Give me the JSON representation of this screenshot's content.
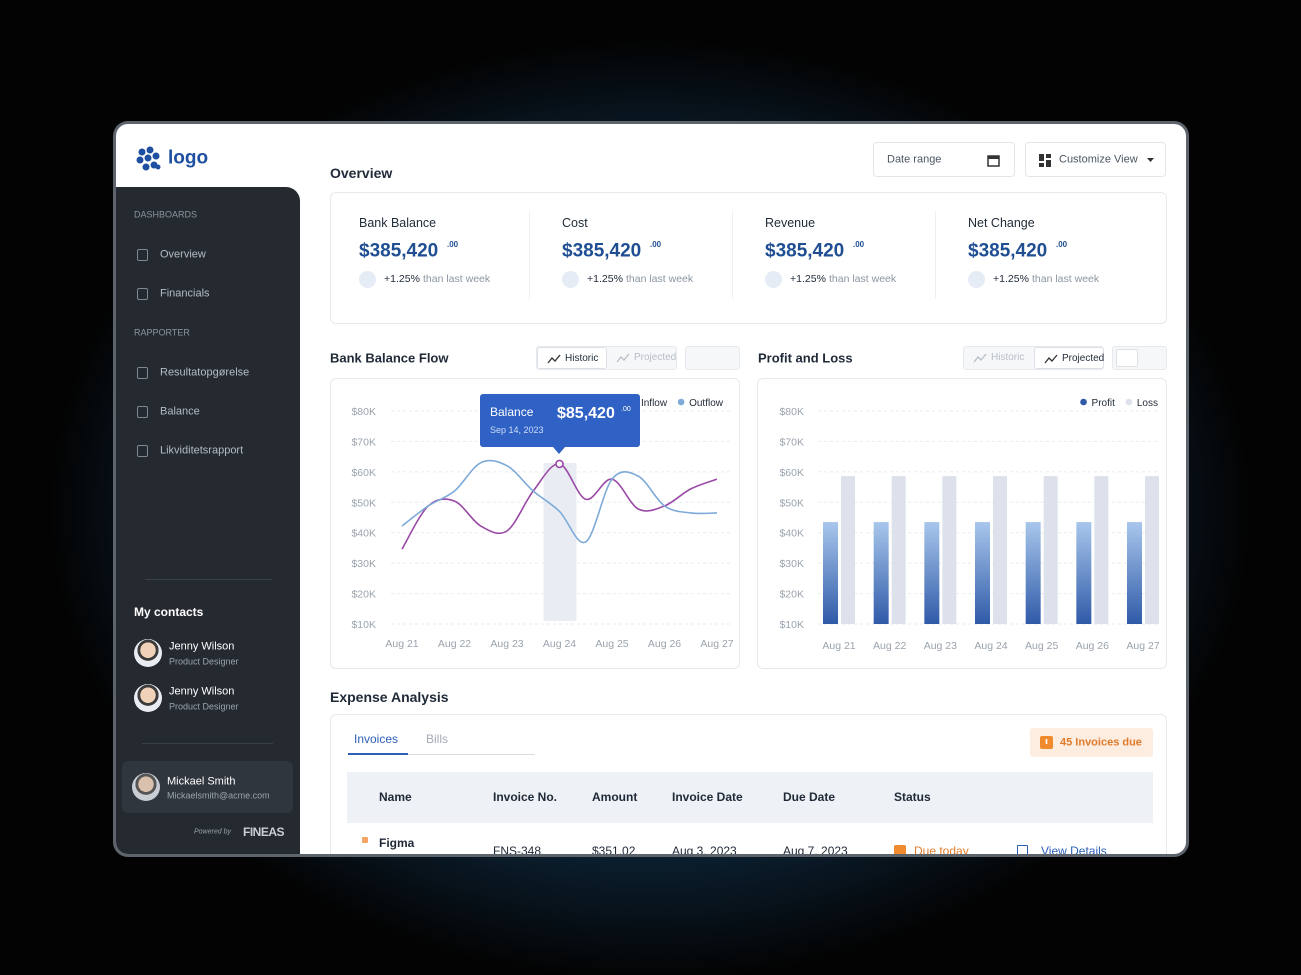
{
  "sidebar": {
    "logo": "logo",
    "sections": [
      {
        "title": "DASHBOARDS",
        "items": [
          "Overview",
          "Financials"
        ]
      },
      {
        "title": "RAPPORTER",
        "items": [
          "Resultatopgørelse",
          "Balance",
          "Likviditetsrapport"
        ]
      }
    ],
    "contacts_title": "My contacts",
    "contacts": [
      {
        "name": "Jenny Wilson",
        "role": "Product Designer"
      },
      {
        "name": "Jenny Wilson",
        "role": "Product Designer"
      }
    ],
    "user": {
      "name": "Mickael Smith",
      "email": "Mickaelsmith@acme.com"
    },
    "powered_by": "Powered by",
    "brand": "FINEAS"
  },
  "header": {
    "title": "Overview",
    "date_range": "Date range",
    "customize": "Customize View"
  },
  "kpis": [
    {
      "label": "Bank Balance",
      "value": "$385,420",
      "cents": ".00",
      "change": "+1.25%",
      "note": "than last week"
    },
    {
      "label": "Cost",
      "value": "$385,420",
      "cents": ".00",
      "change": "+1.25%",
      "note": "than last week"
    },
    {
      "label": "Revenue",
      "value": "$385,420",
      "cents": ".00",
      "change": "+1.25%",
      "note": "than last week"
    },
    {
      "label": "Net Change",
      "value": "$385,420",
      "cents": ".00",
      "change": "+1.25%",
      "note": "than last week"
    }
  ],
  "chart_data": [
    {
      "type": "line",
      "title": "Bank Balance Flow",
      "toggles": [
        "Historic",
        "Projected"
      ],
      "active_view": "Historic",
      "categories": [
        "Aug 21",
        null,
        "Aug 22",
        null,
        "Aug 23",
        null,
        "Aug 24",
        null,
        "Aug 25",
        null,
        "Aug 26",
        null,
        "Aug 27"
      ],
      "series": [
        {
          "name": "Inflow",
          "color": "#9a4aa6",
          "values": [
            34600,
            48800,
            50400,
            42200,
            40600,
            53700,
            62600,
            51000,
            57600,
            47800,
            48800,
            54400,
            57600
          ]
        },
        {
          "name": "Outflow",
          "color": "#7eaad8",
          "values": [
            42200,
            48800,
            53700,
            63000,
            62000,
            53700,
            47000,
            37000,
            57600,
            58600,
            48800,
            46500,
            46500
          ]
        }
      ],
      "ylim": [
        10000,
        80000
      ],
      "yticks": [
        {
          "value": 10000,
          "label": "$10K"
        },
        {
          "value": 20000,
          "label": "$20K"
        },
        {
          "value": 30000,
          "label": "$30K"
        },
        {
          "value": 40000,
          "label": "$40K"
        },
        {
          "value": 50000,
          "label": "$50K"
        },
        {
          "value": 60000,
          "label": "$60K"
        },
        {
          "value": 70000,
          "label": "$70K"
        },
        {
          "value": 80000,
          "label": "$80K"
        }
      ],
      "grid": true,
      "annotation": {
        "label": "Balance",
        "value": "$85,420",
        "cents": ".00",
        "date": "Sep 14, 2023"
      }
    },
    {
      "type": "bar",
      "title": "Profit and Loss",
      "toggles": [
        "Historic",
        "Projected"
      ],
      "active_view": "Projected",
      "categories": [
        "Aug 21",
        "Aug 22",
        "Aug 23",
        "Aug 24",
        "Aug 25",
        "Aug 26",
        "Aug 27"
      ],
      "series": [
        {
          "name": "Profit",
          "color": "#2f5aa8",
          "values": [
            43500,
            43500,
            43500,
            43500,
            43500,
            43500,
            43500
          ]
        },
        {
          "name": "Loss",
          "color": "#dde1ec",
          "values": [
            58600,
            58600,
            58600,
            58600,
            58600,
            58600,
            58600
          ]
        }
      ],
      "ylim": [
        10000,
        80000
      ],
      "yticks": [
        {
          "value": 10000,
          "label": "$10K"
        },
        {
          "value": 20000,
          "label": "$20K"
        },
        {
          "value": 30000,
          "label": "$30K"
        },
        {
          "value": 40000,
          "label": "$40K"
        },
        {
          "value": 50000,
          "label": "$50K"
        },
        {
          "value": 60000,
          "label": "$60K"
        },
        {
          "value": 70000,
          "label": "$70K"
        },
        {
          "value": 80000,
          "label": "$80K"
        }
      ],
      "grid": true
    }
  ],
  "expense": {
    "title": "Expense Analysis",
    "tabs": [
      "Invoices",
      "Bills"
    ],
    "badge": "45 Invoices due",
    "table": {
      "columns": [
        "Name",
        "Invoice No.",
        "Amount",
        "Invoice Date",
        "Due Date",
        "Status"
      ],
      "rows": [
        [
          "Figma",
          "FNS-348",
          "$351.02",
          "Aug 3, 2023",
          "Aug 7, 2023",
          "Due today",
          "View Details"
        ]
      ]
    }
  }
}
